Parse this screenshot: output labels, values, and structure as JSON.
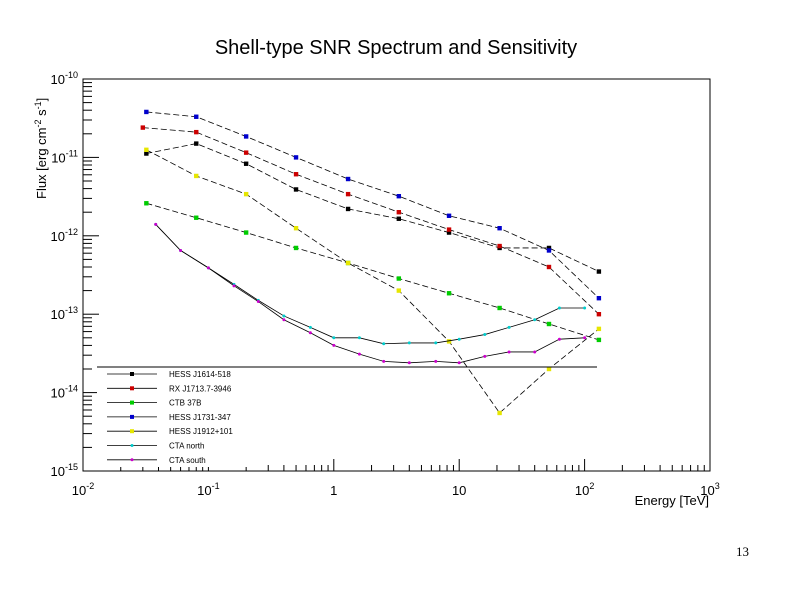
{
  "page_number": "13",
  "chart_data": {
    "type": "line",
    "title": "Shell-type SNR Spectrum and Sensitivity",
    "xlabel": "Energy [TeV]",
    "ylabel_parts": {
      "base": "Flux [erg cm",
      "sup1": "-2",
      "mid": " s",
      "sup2": "-1",
      "end": "]"
    },
    "xscale": "log",
    "yscale": "log",
    "xlim": [
      0.01,
      1000
    ],
    "ylim": [
      1e-15,
      1e-10
    ],
    "x_ticks": [
      {
        "value": 0.01,
        "base": "10",
        "exp": "-2"
      },
      {
        "value": 0.1,
        "base": "10",
        "exp": "-1"
      },
      {
        "value": 1,
        "base": "1",
        "exp": ""
      },
      {
        "value": 10,
        "base": "10",
        "exp": ""
      },
      {
        "value": 100,
        "base": "10",
        "exp": "2"
      },
      {
        "value": 1000,
        "base": "10",
        "exp": "3"
      }
    ],
    "y_ticks": [
      {
        "value": 1e-10,
        "base": "10",
        "exp": "-10"
      },
      {
        "value": 1e-11,
        "base": "10",
        "exp": "-11"
      },
      {
        "value": 1e-12,
        "base": "10",
        "exp": "-12"
      },
      {
        "value": 1e-13,
        "base": "10",
        "exp": "-13"
      },
      {
        "value": 1e-14,
        "base": "10",
        "exp": "-14"
      },
      {
        "value": 1e-15,
        "base": "10",
        "exp": "-15"
      }
    ],
    "legend_position": "bottom-left",
    "series": [
      {
        "name": "HESS J1614-518",
        "color": "#000000",
        "marker": "square",
        "style": "dashed",
        "x": [
          0.032,
          0.08,
          0.2,
          0.5,
          1.3,
          3.3,
          8.3,
          21,
          52,
          130
        ],
        "y": [
          1.12e-11,
          1.5e-11,
          8.3e-12,
          3.9e-12,
          2.2e-12,
          1.65e-12,
          1.1e-12,
          7e-13,
          7e-13,
          3.5e-13
        ]
      },
      {
        "name": "RX J1713.7-3946",
        "color": "#cc0000",
        "marker": "square",
        "style": "dashed",
        "x": [
          0.03,
          0.08,
          0.2,
          0.5,
          1.3,
          3.3,
          8.3,
          21,
          52,
          130
        ],
        "y": [
          2.4e-11,
          2.1e-11,
          1.15e-11,
          6.1e-12,
          3.4e-12,
          2e-12,
          1.2e-12,
          7.4e-13,
          4e-13,
          1e-13
        ]
      },
      {
        "name": "CTB 37B",
        "color": "#00cc00",
        "marker": "square",
        "style": "dashed",
        "x": [
          0.032,
          0.08,
          0.2,
          0.5,
          1.3,
          3.3,
          8.3,
          21,
          52,
          130
        ],
        "y": [
          2.6e-12,
          1.7e-12,
          1.1e-12,
          7e-13,
          4.5e-13,
          2.85e-13,
          1.85e-13,
          1.2e-13,
          7.5e-14,
          4.7e-14
        ]
      },
      {
        "name": "HESS J1731-347",
        "color": "#0000cc",
        "marker": "square",
        "style": "dashed",
        "x": [
          0.032,
          0.08,
          0.2,
          0.5,
          1.3,
          3.3,
          8.3,
          21,
          52,
          130
        ],
        "y": [
          3.8e-11,
          3.3e-11,
          1.85e-11,
          1e-11,
          5.3e-12,
          3.2e-12,
          1.8e-12,
          1.25e-12,
          6.5e-13,
          1.6e-13
        ]
      },
      {
        "name": "HESS J1912+101",
        "color": "#e6e600",
        "marker": "square",
        "style": "dashed",
        "x": [
          0.032,
          0.08,
          0.2,
          0.5,
          1.3,
          3.3,
          8.3,
          21,
          52,
          130
        ],
        "y": [
          1.25e-11,
          5.8e-12,
          3.4e-12,
          1.25e-12,
          4.5e-13,
          2e-13,
          4.5e-14,
          5.5e-15,
          2e-14,
          6.5e-14
        ]
      },
      {
        "name": "CTA north",
        "color": "#00cccc",
        "marker": "star",
        "style": "solid",
        "x": [
          0.038,
          0.06,
          0.1,
          0.16,
          0.25,
          0.4,
          0.65,
          1,
          1.6,
          2.5,
          4,
          6.5,
          10,
          16,
          25,
          40,
          63,
          100
        ],
        "y": [
          1.4e-12,
          6.5e-13,
          3.9e-13,
          2.4e-13,
          1.5e-13,
          9.5e-14,
          6.8e-14,
          5e-14,
          5e-14,
          4.2e-14,
          4.3e-14,
          4.3e-14,
          4.8e-14,
          5.5e-14,
          6.8e-14,
          8.5e-14,
          1.2e-13,
          1.2e-13
        ]
      },
      {
        "name": "CTA south",
        "color": "#cc00cc",
        "marker": "star",
        "style": "solid",
        "x": [
          0.038,
          0.06,
          0.1,
          0.16,
          0.25,
          0.4,
          0.65,
          1,
          1.6,
          2.5,
          4,
          6.5,
          10,
          16,
          25,
          40,
          63,
          100
        ],
        "y": [
          1.4e-12,
          6.5e-13,
          3.9e-13,
          2.3e-13,
          1.45e-13,
          8.5e-14,
          5.8e-14,
          4e-14,
          3.1e-14,
          2.5e-14,
          2.4e-14,
          2.5e-14,
          2.4e-14,
          2.9e-14,
          3.3e-14,
          3.3e-14,
          4.8e-14,
          5e-14
        ]
      }
    ]
  }
}
